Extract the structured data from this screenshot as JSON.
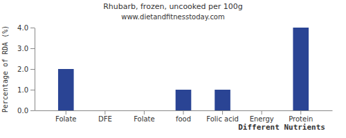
{
  "chart_data": {
    "type": "bar",
    "title": "Rhubarb, frozen, uncooked per 100g",
    "subtitle": "www.dietandfitnesstoday.com",
    "x_label": "Different Nutrients",
    "y_label": "Percentage of RDA (%)",
    "categories": [
      "Folate",
      "DFE",
      "Folate",
      "food",
      "Folic acid",
      "Energy",
      "Protein"
    ],
    "values": [
      2,
      0,
      0,
      1,
      1,
      0,
      4
    ],
    "color": "#2a4494",
    "ylim": [
      0,
      4
    ],
    "yticks": [
      {
        "value": 0,
        "label": "0.0"
      },
      {
        "value": 1,
        "label": "1.0"
      },
      {
        "value": 2,
        "label": "2.0"
      },
      {
        "value": 3,
        "label": "3.0"
      },
      {
        "value": 4,
        "label": "4.0"
      }
    ],
    "grid": false
  }
}
